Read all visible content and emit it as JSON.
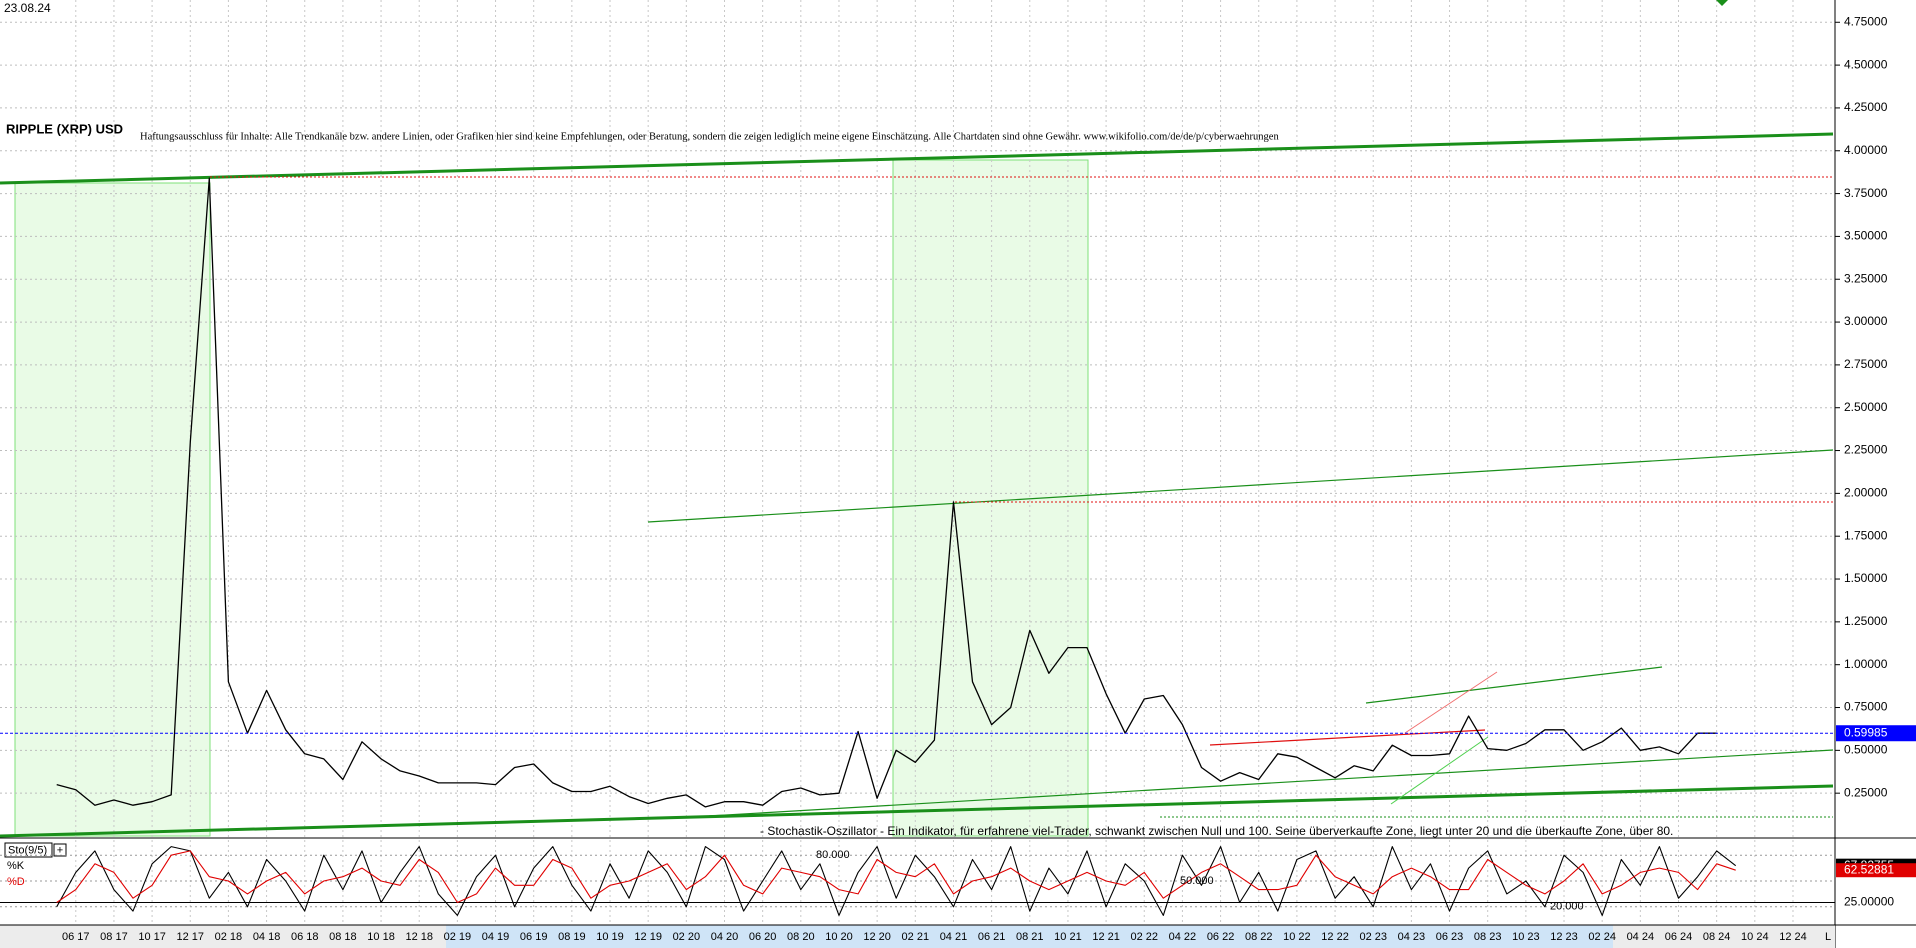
{
  "chart_data": [
    {
      "type": "line",
      "title": "RIPPLE (XRP) USD",
      "date": "23.08.24",
      "annotation": "Haftungsausschluss für Inhalte: Alle Trendkanäle bzw. andere Linien, oder Grafiken hier sind keine Empfehlungen, oder Beratung, sondern die zeigen lediglich meine eigene Einschätzung. Alle Chartdaten sind ohne Gewähr. www.wikifolio.com/de/de/p/cyberwaehrungen",
      "categories": [
        null,
        "06 17",
        null,
        "08 17",
        null,
        "10 17",
        null,
        "12 17",
        null,
        "02 18",
        null,
        "04 18",
        null,
        "06 18",
        null,
        "08 18",
        null,
        "10 18",
        null,
        "12 18",
        null,
        "02 19",
        null,
        "04 19",
        null,
        "06 19",
        null,
        "08 19",
        null,
        "10 19",
        null,
        "12 19",
        null,
        "02 20",
        null,
        "04 20",
        null,
        "06 20",
        null,
        "08 20",
        null,
        "10 20",
        null,
        "12 20",
        null,
        "02 21",
        null,
        "04 21",
        null,
        "06 21",
        null,
        "08 21",
        null,
        "10 21",
        null,
        "12 21",
        null,
        "02 22",
        null,
        "04 22",
        null,
        "06 22",
        null,
        "08 22",
        null,
        "10 22",
        null,
        "12 22",
        null,
        "02 23",
        null,
        "04 23",
        null,
        "06 23",
        null,
        "08 23",
        null,
        "10 23",
        null,
        "12 23",
        null,
        "02 24",
        null,
        "04 24",
        null,
        "06 24",
        null,
        "08 24",
        null,
        "10 24",
        null,
        "12 24",
        null
      ],
      "values": [
        0.3,
        0.27,
        0.18,
        0.21,
        0.18,
        0.2,
        0.24,
        2.3,
        3.84,
        0.9,
        0.6,
        0.85,
        0.62,
        0.48,
        0.45,
        0.33,
        0.55,
        0.45,
        0.38,
        0.35,
        0.31,
        0.31,
        0.31,
        0.3,
        0.4,
        0.42,
        0.31,
        0.26,
        0.26,
        0.29,
        0.23,
        0.19,
        0.22,
        0.24,
        0.17,
        0.2,
        0.2,
        0.18,
        0.26,
        0.28,
        0.24,
        0.25,
        0.61,
        0.22,
        0.5,
        0.43,
        0.56,
        1.95,
        0.9,
        0.65,
        0.75,
        1.2,
        0.95,
        1.1,
        1.1,
        0.83,
        0.6,
        0.8,
        0.82,
        0.65,
        0.4,
        0.32,
        0.37,
        0.33,
        0.48,
        0.46,
        0.4,
        0.34,
        0.41,
        0.38,
        0.53,
        0.47,
        0.47,
        0.48,
        0.7,
        0.51,
        0.5,
        0.54,
        0.62,
        0.62,
        0.5,
        0.55,
        0.63,
        0.5,
        0.52,
        0.48,
        0.6,
        0.59985,
        null,
        null,
        null,
        null,
        null
      ],
      "color": "#000000",
      "price_line_color": "#0000ff",
      "ylim": [
        0,
        4.88
      ],
      "yticks": [
        {
          "value": 0.25,
          "label": "0.25000"
        },
        {
          "value": 0.5,
          "label": "0.50000"
        },
        {
          "value": 0.75,
          "label": "0.75000"
        },
        {
          "value": 1,
          "label": "1.00000"
        },
        {
          "value": 1.25,
          "label": "1.25000"
        },
        {
          "value": 1.5,
          "label": "1.50000"
        },
        {
          "value": 1.75,
          "label": "1.75000"
        },
        {
          "value": 2,
          "label": "2.00000"
        },
        {
          "value": 2.25,
          "label": "2.25000"
        },
        {
          "value": 2.5,
          "label": "2.50000"
        },
        {
          "value": 2.75,
          "label": "2.75000"
        },
        {
          "value": 3,
          "label": "3.00000"
        },
        {
          "value": 3.25,
          "label": "3.25000"
        },
        {
          "value": 3.5,
          "label": "3.50000"
        },
        {
          "value": 3.75,
          "label": "3.75000"
        },
        {
          "value": 4,
          "label": "4.00000"
        },
        {
          "value": 4.25,
          "label": "4.25000"
        },
        {
          "value": 4.5,
          "label": "4.50000"
        },
        {
          "value": 4.75,
          "label": "4.75000"
        }
      ],
      "grid": true,
      "x_end_label": "L"
    },
    {
      "type": "line",
      "title": "Sto(9/5)",
      "annotation": "- Stochastik-Oszillator - Ein Indikator, für erfahrene viel-Trader, schwankt zwischen Null und 100. Seine überverkaufte Zone, liegt unter 20 und die überkaufte Zone, über 80.",
      "series": [
        {
          "name": "%K",
          "color": "#000000",
          "values": [
            20,
            60,
            85,
            40,
            15,
            70,
            90,
            85,
            30,
            60,
            20,
            75,
            50,
            15,
            80,
            40,
            85,
            25,
            60,
            90,
            35,
            10,
            55,
            80,
            20,
            65,
            90,
            45,
            15,
            70,
            30,
            85,
            60,
            20,
            90,
            75,
            15,
            50,
            85,
            40,
            70,
            10,
            60,
            90,
            30,
            80,
            55,
            20,
            75,
            40,
            90,
            15,
            65,
            35,
            85,
            20,
            70,
            50,
            10,
            80,
            45,
            90,
            25,
            60,
            15,
            75,
            85,
            30,
            55,
            20,
            90,
            40,
            70,
            15,
            65,
            85,
            35,
            50,
            20,
            80,
            60,
            10,
            75,
            45,
            90,
            30,
            55,
            85,
            67.82755,
            null,
            null,
            null,
            null
          ]
        },
        {
          "name": "%D",
          "color": "#e00000",
          "values": [
            25,
            40,
            70,
            60,
            30,
            45,
            80,
            85,
            55,
            50,
            35,
            50,
            60,
            35,
            50,
            55,
            65,
            50,
            45,
            75,
            60,
            25,
            35,
            65,
            45,
            45,
            75,
            65,
            30,
            45,
            50,
            60,
            70,
            40,
            55,
            80,
            45,
            35,
            65,
            60,
            55,
            40,
            35,
            75,
            60,
            55,
            70,
            35,
            50,
            55,
            65,
            50,
            40,
            50,
            60,
            50,
            45,
            60,
            30,
            45,
            60,
            70,
            55,
            40,
            40,
            45,
            80,
            55,
            45,
            35,
            55,
            65,
            55,
            40,
            40,
            75,
            60,
            45,
            35,
            50,
            70,
            35,
            45,
            60,
            65,
            60,
            40,
            70,
            62.52881,
            null,
            null,
            null,
            null
          ]
        }
      ],
      "ylim": [
        0,
        100
      ],
      "yticks": [
        {
          "value": 25,
          "label": "25.00000"
        }
      ],
      "levels": [
        {
          "value": 80,
          "label": "80.000"
        },
        {
          "value": 50,
          "label": "50.000"
        },
        {
          "value": 20,
          "label": "20.000"
        }
      ]
    }
  ]
}
